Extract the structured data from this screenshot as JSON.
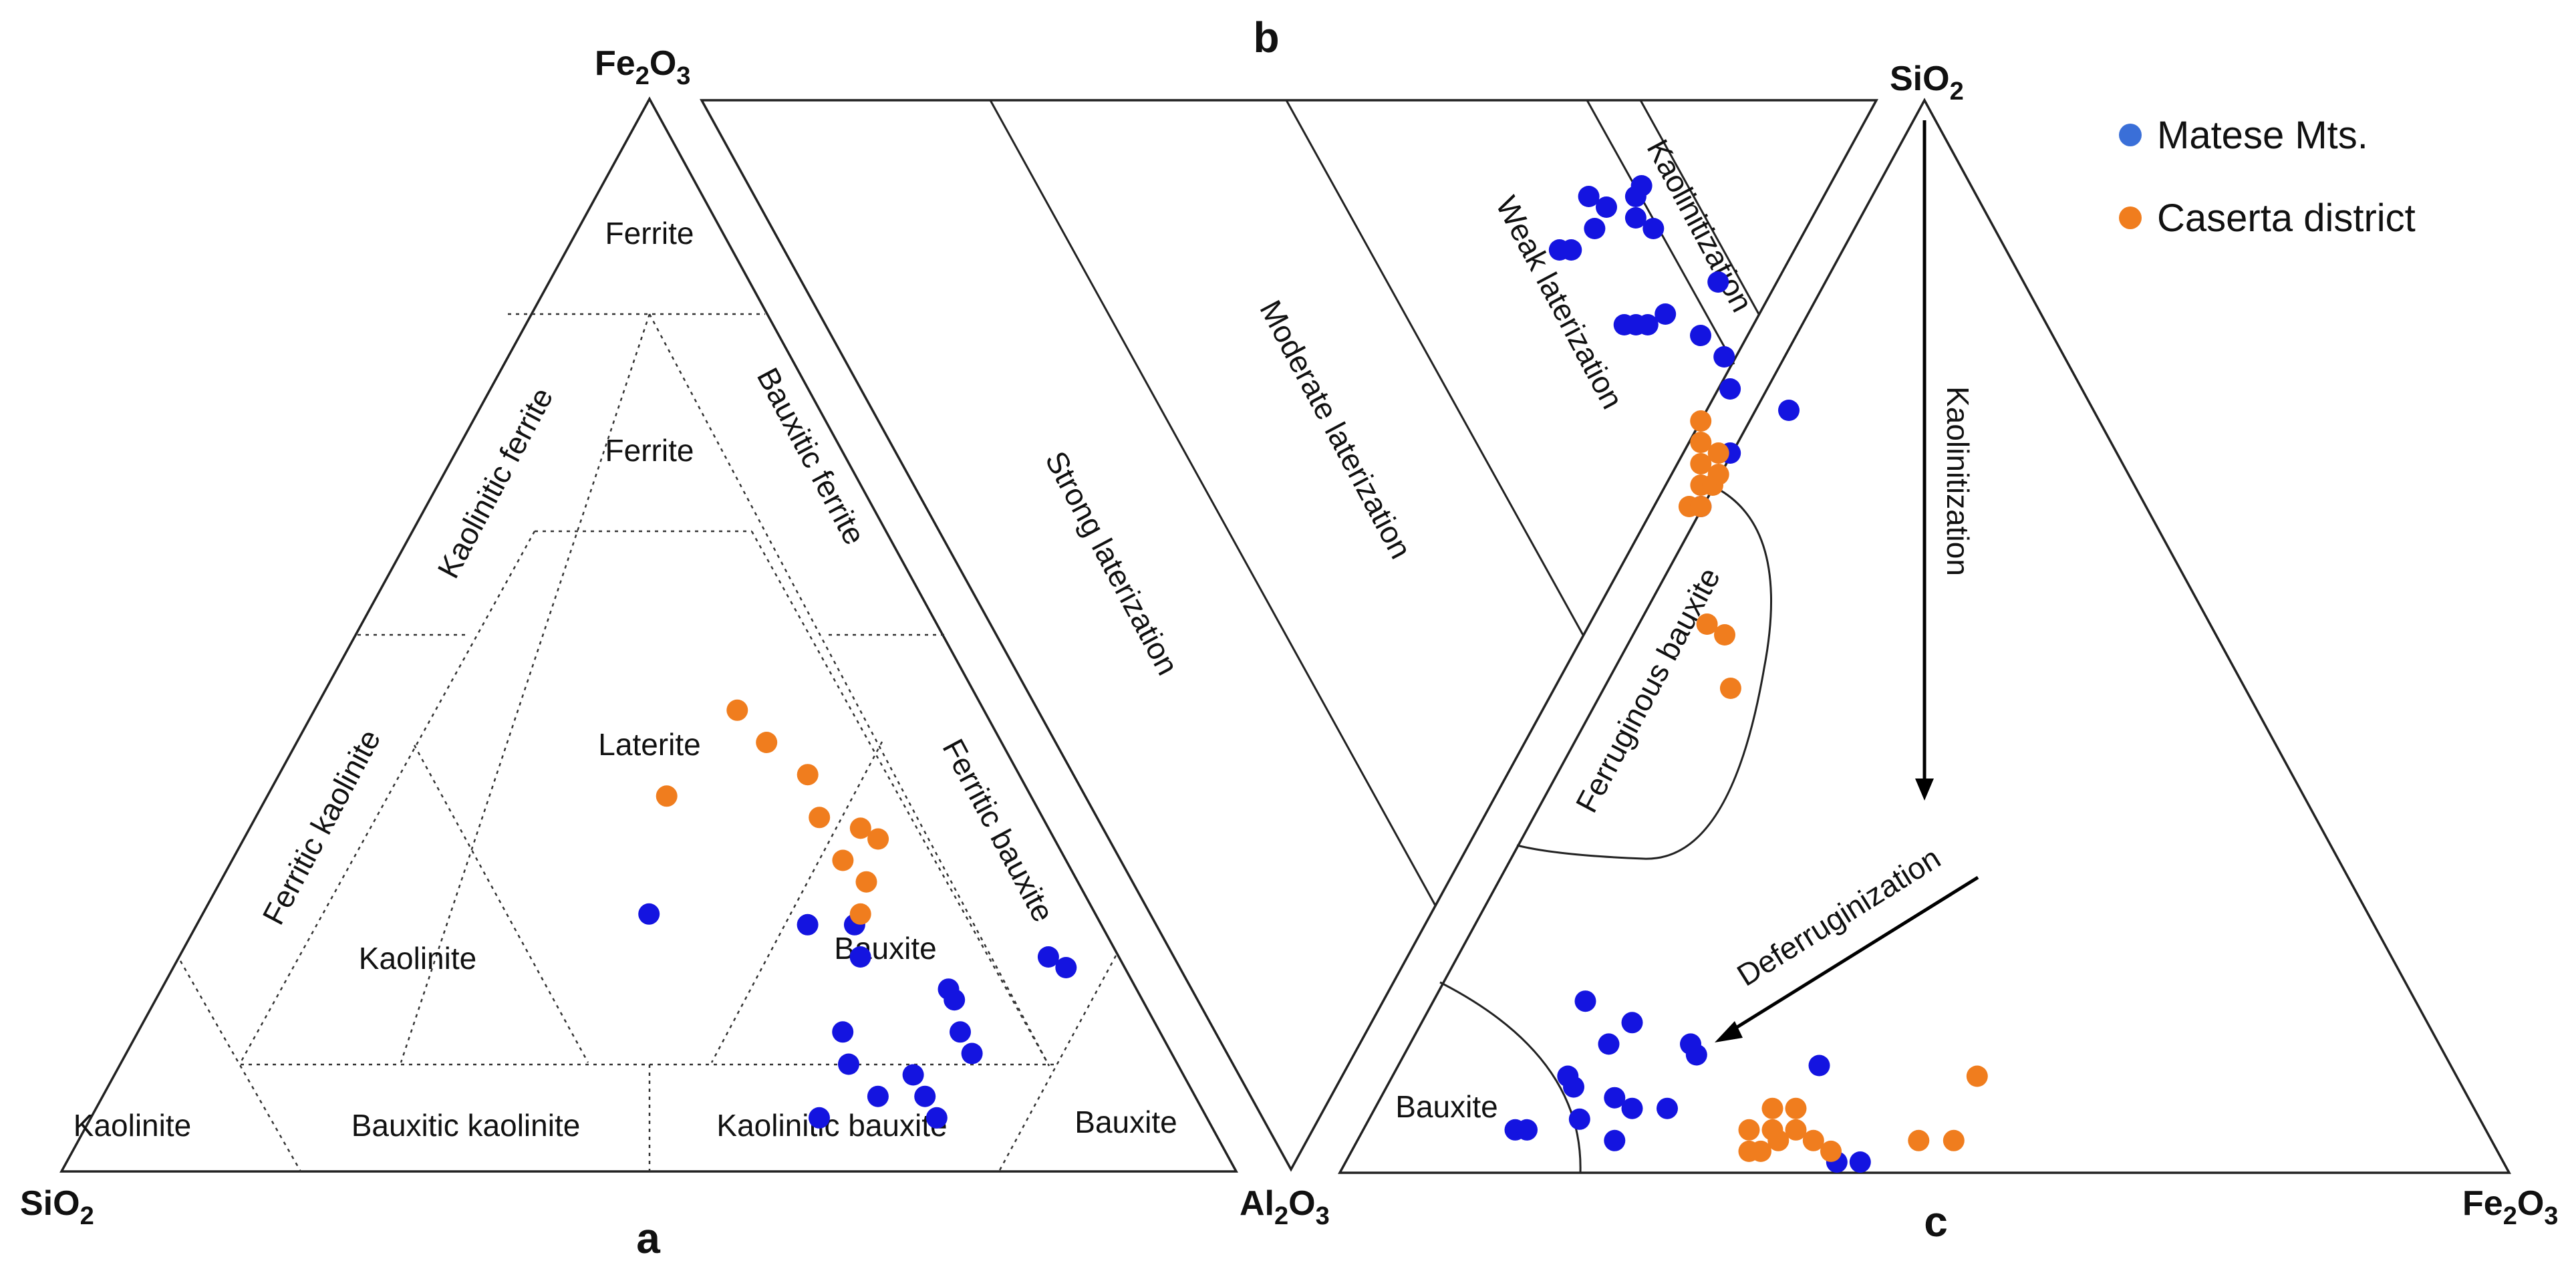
{
  "chart_data": [
    {
      "type": "scatter",
      "panel": "a",
      "diagram": "ternary",
      "corners": {
        "top": "Fe2O3",
        "left": "SiO2",
        "right": "Al2O3"
      },
      "fields": [
        "Ferrite",
        "Kaolinitic ferrite",
        "Bauxitic ferrite",
        "Ferrite",
        "Laterite",
        "Ferritic kaolinite",
        "Ferritic bauxite",
        "Kaolinite",
        "Bauxite",
        "Kaolinite",
        "Bauxitic kaolinite",
        "Kaolinitic bauxite",
        "Bauxite"
      ],
      "series": [
        {
          "name": "Matese Mts.",
          "color": "#1414e0",
          "points": [
            [
              0.38,
              0.24
            ],
            [
              0.52,
              0.23
            ],
            [
              0.56,
              0.23
            ],
            [
              0.58,
              0.2
            ],
            [
              0.74,
              0.2
            ],
            [
              0.76,
              0.19
            ],
            [
              0.67,
              0.17
            ],
            [
              0.68,
              0.16
            ],
            [
              0.6,
              0.13
            ],
            [
              0.62,
              0.1
            ],
            [
              0.7,
              0.13
            ],
            [
              0.72,
              0.11
            ],
            [
              0.68,
              0.09
            ],
            [
              0.66,
              0.07
            ],
            [
              0.7,
              0.07
            ],
            [
              0.72,
              0.05
            ],
            [
              0.62,
              0.05
            ]
          ]
        },
        {
          "name": "Caserta district",
          "color": "#f07d1e",
          "points": [
            [
              0.34,
              0.35
            ],
            [
              0.4,
              0.4
            ],
            [
              0.36,
              0.43
            ],
            [
              0.45,
              0.37
            ],
            [
              0.48,
              0.33
            ],
            [
              0.52,
              0.32
            ],
            [
              0.54,
              0.31
            ],
            [
              0.52,
              0.29
            ],
            [
              0.55,
              0.27
            ],
            [
              0.56,
              0.24
            ]
          ]
        }
      ]
    },
    {
      "type": "scatter",
      "panel": "b",
      "diagram": "ternary",
      "fields": [
        "Strong laterization",
        "Moderate laterization",
        "Weak laterization",
        "Kaolinitization"
      ],
      "series": [
        {
          "name": "Matese Mts.",
          "color": "#1414e0",
          "points": [
            [
              0.66,
              0.38
            ],
            [
              0.71,
              0.33
            ],
            [
              0.78,
              0.29
            ],
            [
              0.74,
              0.27
            ],
            [
              0.75,
              0.24
            ],
            [
              0.74,
              0.22
            ],
            [
              0.68,
              0.21
            ],
            [
              0.69,
              0.21
            ],
            [
              0.7,
              0.21
            ],
            [
              0.72,
              0.2
            ],
            [
              0.78,
              0.17
            ],
            [
              0.66,
              0.14
            ],
            [
              0.67,
              0.14
            ],
            [
              0.7,
              0.12
            ],
            [
              0.72,
              0.1
            ],
            [
              0.75,
              0.12
            ],
            [
              0.74,
              0.11
            ],
            [
              0.75,
              0.09
            ],
            [
              0.76,
              0.08
            ],
            [
              0.71,
              0.09
            ]
          ]
        },
        {
          "name": "Caserta district",
          "color": "#f07d1e",
          "points": [
            [
              0.61,
              0.49
            ],
            [
              0.6,
              0.55
            ],
            [
              0.62,
              0.5
            ],
            [
              0.65,
              0.38
            ],
            [
              0.66,
              0.38
            ],
            [
              0.67,
              0.36
            ],
            [
              0.68,
              0.36
            ],
            [
              0.69,
              0.35
            ],
            [
              0.7,
              0.33
            ],
            [
              0.68,
              0.34
            ],
            [
              0.69,
              0.32
            ],
            [
              0.7,
              0.3
            ]
          ]
        }
      ]
    },
    {
      "type": "scatter",
      "panel": "c",
      "diagram": "ternary",
      "corners": {
        "top": "SiO2",
        "left": "Al2O3",
        "right": "Fe2O3"
      },
      "fields": [
        "Ferruginous bauxite",
        "Bauxite"
      ],
      "arrows": [
        "Kaolinitization",
        "Deferruginization"
      ],
      "series": [
        {
          "name": "Matese Mts.",
          "color": "#1414e0",
          "points": [
            [
              0.13,
              0.16
            ],
            [
              0.18,
              0.14
            ],
            [
              0.17,
              0.12
            ],
            [
              0.24,
              0.12
            ],
            [
              0.25,
              0.11
            ],
            [
              0.15,
              0.09
            ],
            [
              0.16,
              0.08
            ],
            [
              0.2,
              0.07
            ],
            [
              0.22,
              0.06
            ],
            [
              0.25,
              0.06
            ],
            [
              0.18,
              0.05
            ],
            [
              0.13,
              0.04
            ],
            [
              0.14,
              0.04
            ],
            [
              0.22,
              0.03
            ],
            [
              0.36,
              0.1
            ],
            [
              0.42,
              0.01
            ],
            [
              0.44,
              0.01
            ]
          ]
        },
        {
          "name": "Caserta district",
          "color": "#f07d1e",
          "points": [
            [
              0.34,
              0.06
            ],
            [
              0.36,
              0.06
            ],
            [
              0.33,
              0.04
            ],
            [
              0.35,
              0.04
            ],
            [
              0.37,
              0.04
            ],
            [
              0.36,
              0.03
            ],
            [
              0.34,
              0.02
            ],
            [
              0.35,
              0.02
            ],
            [
              0.39,
              0.03
            ],
            [
              0.41,
              0.02
            ],
            [
              0.5,
              0.09
            ],
            [
              0.51,
              0.03
            ],
            [
              0.48,
              0.03
            ]
          ]
        }
      ]
    }
  ],
  "labels": {
    "panel_a": "a",
    "panel_b": "b",
    "panel_c": "c",
    "a_top_main": "Fe",
    "a_top_s1": "2",
    "a_top_mid": "O",
    "a_top_s2": "3",
    "a_left_main": "SiO",
    "a_left_s1": "2",
    "a_right_main": "Al",
    "a_right_s1": "2",
    "a_right_mid": "O",
    "a_right_s2": "3",
    "c_top_main": "SiO",
    "c_top_s1": "2",
    "c_right_main": "Fe",
    "c_right_s1": "2",
    "c_right_mid": "O",
    "c_right_s2": "3",
    "ferrite_top": "Ferrite",
    "kaolinitic_ferrite": "Kaolinitic ferrite",
    "bauxitic_ferrite": "Bauxitic ferrite",
    "ferrite_inner": "Ferrite",
    "laterite": "Laterite",
    "ferritic_kaolinite": "Ferritic kaolinite",
    "ferritic_bauxite": "Ferritic bauxite",
    "kaolinite_inner": "Kaolinite",
    "bauxite_inner": "Bauxite",
    "kaolinite_bottom": "Kaolinite",
    "bauxitic_kaolinite": "Bauxitic kaolinite",
    "kaolinitic_bauxite": "Kaolinitic bauxite",
    "bauxite_bottom": "Bauxite",
    "strong_laterization": "Strong laterization",
    "moderate_laterization": "Moderate laterization",
    "weak_laterization": "Weak laterization",
    "kaolinitization_b": "Kaolinitization",
    "kaolinitization_arrow": "Kaolinitization",
    "ferruginous_bauxite": "Ferruginous bauxite",
    "deferruginization": "Deferruginization",
    "bauxite_c": "Bauxite"
  },
  "legend": {
    "items": [
      {
        "label": "Matese Mts.",
        "color": "#3a6fd8"
      },
      {
        "label": "Caserta district",
        "color": "#f07d1e"
      }
    ]
  },
  "colors": {
    "matese": "#1414e0",
    "caserta": "#f07d1e"
  }
}
